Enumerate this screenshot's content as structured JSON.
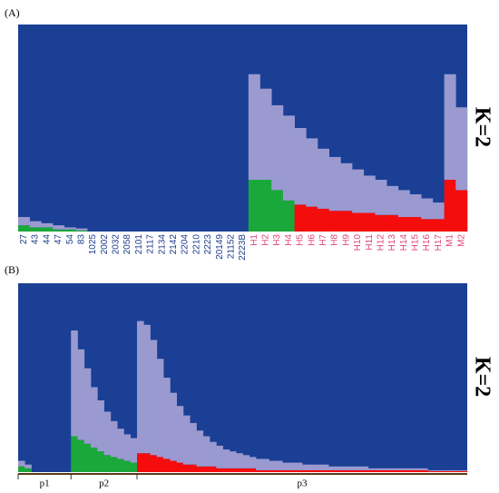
{
  "chart_data": [
    {
      "type": "stacked_bar",
      "panel_label": "(A)",
      "annotation": "K=2",
      "background": "#1a3f94",
      "categories": [
        "27",
        "43",
        "44",
        "47",
        "54",
        "83",
        "1025",
        "2002",
        "2032",
        "2058",
        "2101",
        "2117",
        "2134",
        "2142",
        "2204",
        "2210",
        "2223",
        "20149",
        "21152",
        "2223B",
        "H1",
        "H2",
        "H3",
        "H4",
        "H5",
        "H6",
        "H7",
        "H8",
        "H9",
        "H10",
        "H11",
        "H12",
        "H13",
        "H14",
        "H15",
        "H16",
        "H17",
        "M1",
        "M2"
      ],
      "category_colors": [
        "#1a3a8a",
        "#1a3a8a",
        "#1a3a8a",
        "#1a3a8a",
        "#1a3a8a",
        "#1a3a8a",
        "#1a3a8a",
        "#1a3a8a",
        "#1a3a8a",
        "#1a3a8a",
        "#1a3a8a",
        "#1a3a8a",
        "#1a3a8a",
        "#1a3a8a",
        "#1a3a8a",
        "#1a3a8a",
        "#1a3a8a",
        "#1a3a8a",
        "#1a3a8a",
        "#1a3a8a",
        "#e0407a",
        "#e0407a",
        "#e0407a",
        "#e0407a",
        "#e0407a",
        "#e0407a",
        "#e0407a",
        "#e0407a",
        "#e0407a",
        "#e0407a",
        "#e0407a",
        "#e0407a",
        "#e0407a",
        "#e0407a",
        "#e0407a",
        "#e0407a",
        "#e0407a",
        "#e0407a",
        "#e0407a"
      ],
      "ylim": [
        0,
        1
      ],
      "series": [
        {
          "color": "#1aa83a",
          "values": [
            0.03,
            0.02,
            0.02,
            0.01,
            0.01,
            0.005,
            0,
            0,
            0,
            0,
            0,
            0,
            0,
            0,
            0,
            0,
            0,
            0,
            0,
            0,
            0.25,
            0.25,
            0.2,
            0.15,
            0,
            0,
            0,
            0,
            0,
            0,
            0,
            0,
            0,
            0,
            0,
            0,
            0,
            0,
            0
          ]
        },
        {
          "color": "#f50c0c",
          "values": [
            0,
            0,
            0,
            0,
            0,
            0,
            0,
            0,
            0,
            0,
            0,
            0,
            0,
            0,
            0,
            0,
            0,
            0,
            0,
            0,
            0,
            0,
            0,
            0,
            0.13,
            0.12,
            0.11,
            0.1,
            0.1,
            0.09,
            0.09,
            0.08,
            0.08,
            0.07,
            0.07,
            0.06,
            0.06,
            0.25,
            0.2
          ]
        },
        {
          "color": "#9a9ad0",
          "values": [
            0.04,
            0.03,
            0.02,
            0.02,
            0.01,
            0.01,
            0,
            0,
            0,
            0,
            0,
            0,
            0,
            0,
            0,
            0,
            0,
            0,
            0,
            0,
            0.51,
            0.44,
            0.41,
            0.41,
            0.37,
            0.33,
            0.29,
            0.26,
            0.23,
            0.21,
            0.18,
            0.17,
            0.14,
            0.13,
            0.11,
            0.1,
            0.08,
            0.51,
            0.4
          ]
        }
      ]
    },
    {
      "type": "stacked_bar",
      "panel_label": "(B)",
      "annotation": "K=2",
      "background": "#1a3f94",
      "groups": [
        {
          "label": "p1",
          "count": 8
        },
        {
          "label": "p2",
          "count": 10
        },
        {
          "label": "p3",
          "count": 50
        }
      ],
      "ylim": [
        0,
        1
      ],
      "series": [
        {
          "color": "#1aa83a",
          "values": [
            0.03,
            0.02,
            0,
            0,
            0,
            0,
            0,
            0,
            0.19,
            0.17,
            0.15,
            0.13,
            0.11,
            0.09,
            0.08,
            0.07,
            0.06,
            0.05,
            0,
            0,
            0,
            0,
            0,
            0,
            0,
            0,
            0,
            0,
            0,
            0,
            0,
            0,
            0,
            0,
            0,
            0,
            0,
            0,
            0,
            0,
            0,
            0,
            0,
            0,
            0,
            0,
            0,
            0,
            0,
            0,
            0,
            0,
            0,
            0,
            0,
            0,
            0,
            0,
            0,
            0,
            0,
            0,
            0,
            0,
            0,
            0,
            0,
            0
          ]
        },
        {
          "color": "#f50c0c",
          "values": [
            0,
            0,
            0,
            0,
            0,
            0,
            0,
            0,
            0,
            0,
            0,
            0,
            0,
            0,
            0,
            0,
            0,
            0,
            0.1,
            0.1,
            0.09,
            0.08,
            0.07,
            0.06,
            0.05,
            0.04,
            0.04,
            0.03,
            0.03,
            0.03,
            0.02,
            0.02,
            0.02,
            0.02,
            0.02,
            0.02,
            0.01,
            0.01,
            0.01,
            0.01,
            0.01,
            0.01,
            0.01,
            0.01,
            0.01,
            0.01,
            0.01,
            0.01,
            0.01,
            0.01,
            0.01,
            0.01,
            0.01,
            0.01,
            0.01,
            0.01,
            0.01,
            0.01,
            0.01,
            0.01,
            0.01,
            0.01,
            0.005,
            0.005,
            0.005,
            0.005,
            0.005,
            0.005
          ]
        },
        {
          "color": "#9a9ad0",
          "values": [
            0.03,
            0.02,
            0,
            0,
            0,
            0,
            0,
            0,
            0.56,
            0.48,
            0.4,
            0.32,
            0.27,
            0.23,
            0.19,
            0.16,
            0.14,
            0.13,
            0.7,
            0.68,
            0.61,
            0.52,
            0.43,
            0.36,
            0.3,
            0.26,
            0.22,
            0.19,
            0.16,
            0.13,
            0.12,
            0.1,
            0.09,
            0.08,
            0.07,
            0.06,
            0.06,
            0.06,
            0.05,
            0.05,
            0.04,
            0.04,
            0.04,
            0.03,
            0.03,
            0.03,
            0.03,
            0.02,
            0.02,
            0.02,
            0.02,
            0.02,
            0.02,
            0.01,
            0.01,
            0.01,
            0.01,
            0.01,
            0.01,
            0.01,
            0.01,
            0.01,
            0.005,
            0.005,
            0.005,
            0.005,
            0.005,
            0.005
          ]
        }
      ]
    }
  ]
}
